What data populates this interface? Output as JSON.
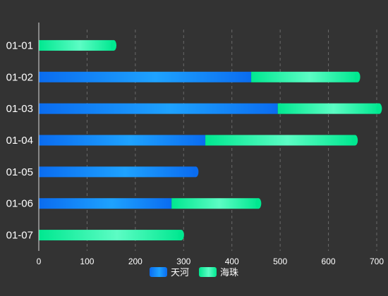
{
  "chart_data": {
    "type": "bar",
    "orientation": "horizontal",
    "stacked": true,
    "categories": [
      "01-01",
      "01-02",
      "01-03",
      "01-04",
      "01-05",
      "01-06",
      "01-07"
    ],
    "series": [
      {
        "name": "天河",
        "values": [
          0,
          440,
          495,
          345,
          325,
          275,
          0
        ]
      },
      {
        "name": "海珠",
        "values": [
          155,
          220,
          210,
          310,
          0,
          180,
          295
        ]
      }
    ],
    "xlim": [
      0,
      700
    ],
    "xticks": [
      0,
      100,
      200,
      300,
      400,
      500,
      600,
      700
    ],
    "grid": true,
    "legend_position": "bottom",
    "colors": {
      "series0_start": "#0a6cf0",
      "series0_mid": "#1ea2ff",
      "series1_start": "#00e890",
      "series1_mid": "#5cfcc4",
      "grid": "#6a6a6a",
      "axis": "#dddddd"
    }
  }
}
